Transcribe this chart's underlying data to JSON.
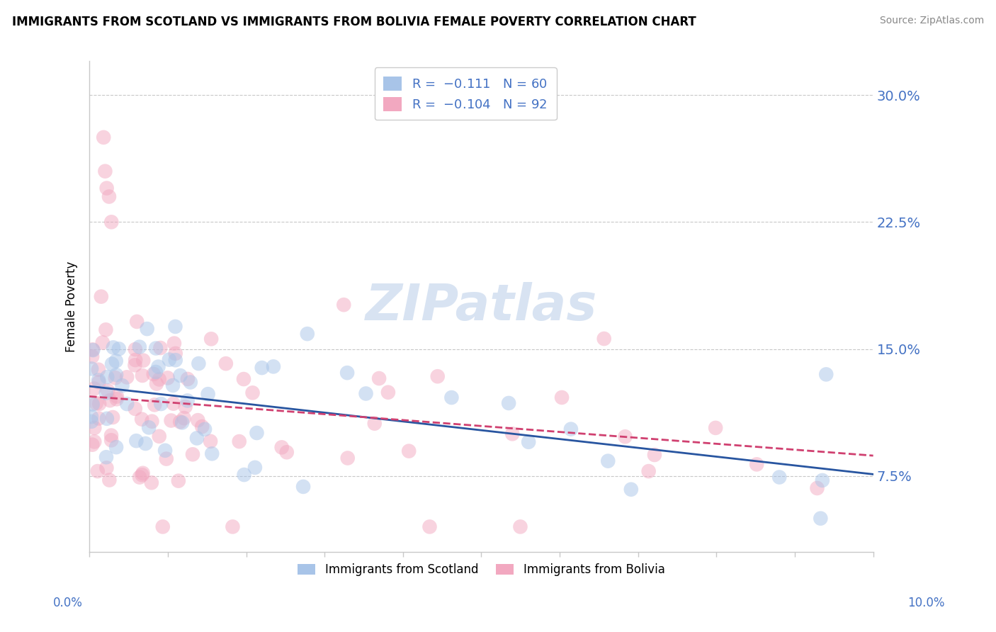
{
  "title": "IMMIGRANTS FROM SCOTLAND VS IMMIGRANTS FROM BOLIVIA FEMALE POVERTY CORRELATION CHART",
  "source": "Source: ZipAtlas.com",
  "ylabel": "Female Poverty",
  "yticks": [
    7.5,
    15.0,
    22.5,
    30.0
  ],
  "xlim": [
    0.0,
    10.0
  ],
  "ylim": [
    3.0,
    32.0
  ],
  "color_scotland": "#a8c4e8",
  "color_bolivia": "#f2a8c0",
  "color_scotland_line": "#2855a0",
  "color_bolivia_line": "#d04070",
  "color_axis_labels": "#4472c4",
  "watermark_color": "#c8d8ed",
  "grid_color": "#c8c8c8",
  "legend_text_color": "#4472c4",
  "n_scotland": 60,
  "n_bolivia": 92,
  "R_scotland": -0.111,
  "R_bolivia": -0.104,
  "scatter_size": 220,
  "scatter_alpha": 0.5,
  "line_scot_intercept": 12.8,
  "line_scot_slope": -0.52,
  "line_boliv_intercept": 12.2,
  "line_boliv_slope": -0.35
}
